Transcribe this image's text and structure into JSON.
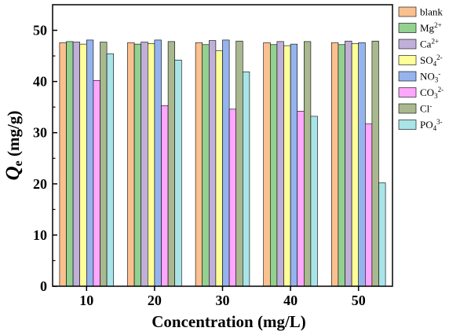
{
  "chart_data": {
    "type": "bar",
    "categories": [
      "10",
      "20",
      "30",
      "40",
      "50"
    ],
    "xlabel": "Concentration (mg/L)",
    "ylabel": {
      "q": "Q",
      "sub": "e",
      "rest": " (mg/g)"
    },
    "ylim": [
      0,
      55
    ],
    "yticks": [
      0,
      10,
      20,
      30,
      40,
      50
    ],
    "grid": false,
    "legend_position": "right",
    "series": [
      {
        "name": "blank",
        "label": {
          "base": "blank",
          "sup": "",
          "sub": ""
        },
        "color": "#FAC090",
        "values": [
          47.6,
          47.6,
          47.6,
          47.6,
          47.6
        ]
      },
      {
        "name": "Mg2+",
        "label": {
          "base": "Mg",
          "sup": "2+",
          "sub": ""
        },
        "color": "#92D18F",
        "values": [
          47.8,
          47.3,
          47.2,
          47.2,
          47.2
        ]
      },
      {
        "name": "Ca2+",
        "label": {
          "base": "Ca",
          "sup": "2+",
          "sub": ""
        },
        "color": "#C0AFD8",
        "values": [
          47.7,
          47.7,
          48.0,
          47.8,
          47.9
        ]
      },
      {
        "name": "SO42-",
        "label": {
          "base": "SO",
          "sub": "4",
          "sup": "2-"
        },
        "color": "#FFFF99",
        "values": [
          47.3,
          47.4,
          46.0,
          47.0,
          47.4
        ]
      },
      {
        "name": "NO3-",
        "label": {
          "base": "NO",
          "sub": "3",
          "sup": "-"
        },
        "color": "#95B3EE",
        "values": [
          48.1,
          48.1,
          48.1,
          47.3,
          47.6
        ]
      },
      {
        "name": "CO32-",
        "label": {
          "base": "CO",
          "sub": "3",
          "sup": "2-"
        },
        "color": "#FFA6FF",
        "values": [
          40.2,
          35.3,
          34.6,
          34.2,
          31.7
        ]
      },
      {
        "name": "Cl-",
        "label": {
          "base": "Cl",
          "sup": "-",
          "sub": ""
        },
        "color": "#A9B88E",
        "values": [
          47.7,
          47.8,
          47.9,
          47.8,
          47.9
        ]
      },
      {
        "name": "PO43-",
        "label": {
          "base": "PO",
          "sub": "4",
          "sup": "3-"
        },
        "color": "#A8E4E8",
        "values": [
          45.4,
          44.2,
          41.9,
          33.2,
          20.2
        ]
      }
    ]
  }
}
